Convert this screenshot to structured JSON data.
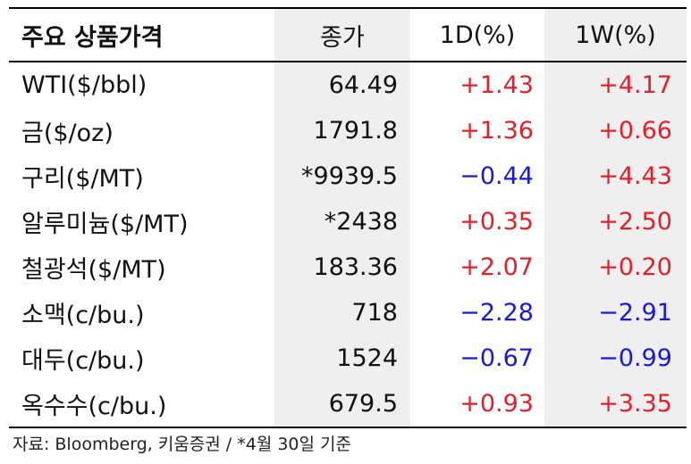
{
  "table": {
    "headers": {
      "name": "주요 상품가격",
      "close": "종가",
      "d1": "1D(%)",
      "w1": "1W(%)"
    },
    "rows": [
      {
        "name": "WTI($/bbl)",
        "close": "64.49",
        "d1": "+1.43",
        "w1": "+4.17"
      },
      {
        "name": "금($/oz)",
        "close": "1791.8",
        "d1": "+1.36",
        "w1": "+0.66"
      },
      {
        "name": "구리($/MT)",
        "close": "*9939.5",
        "d1": "−0.44",
        "w1": "+4.43"
      },
      {
        "name": "알루미늄($/MT)",
        "close": "*2438",
        "d1": "+0.35",
        "w1": "+2.50"
      },
      {
        "name": "철광석($/MT)",
        "close": "183.36",
        "d1": "+2.07",
        "w1": "+0.20"
      },
      {
        "name": "소맥(c/bu.)",
        "close": "718",
        "d1": "−2.28",
        "w1": "−2.91"
      },
      {
        "name": "대두(c/bu.)",
        "close": "1524",
        "d1": "−0.67",
        "w1": "−0.99"
      },
      {
        "name": "옥수수(c/bu.)",
        "close": "679.5",
        "d1": "+0.93",
        "w1": "+3.35"
      }
    ]
  },
  "source": "자료: Bloomberg, 키움증권 / *4월 30일 기준",
  "colors": {
    "positive": "#e0202a",
    "negative": "#1a1ad6",
    "shade": "#efefef"
  }
}
